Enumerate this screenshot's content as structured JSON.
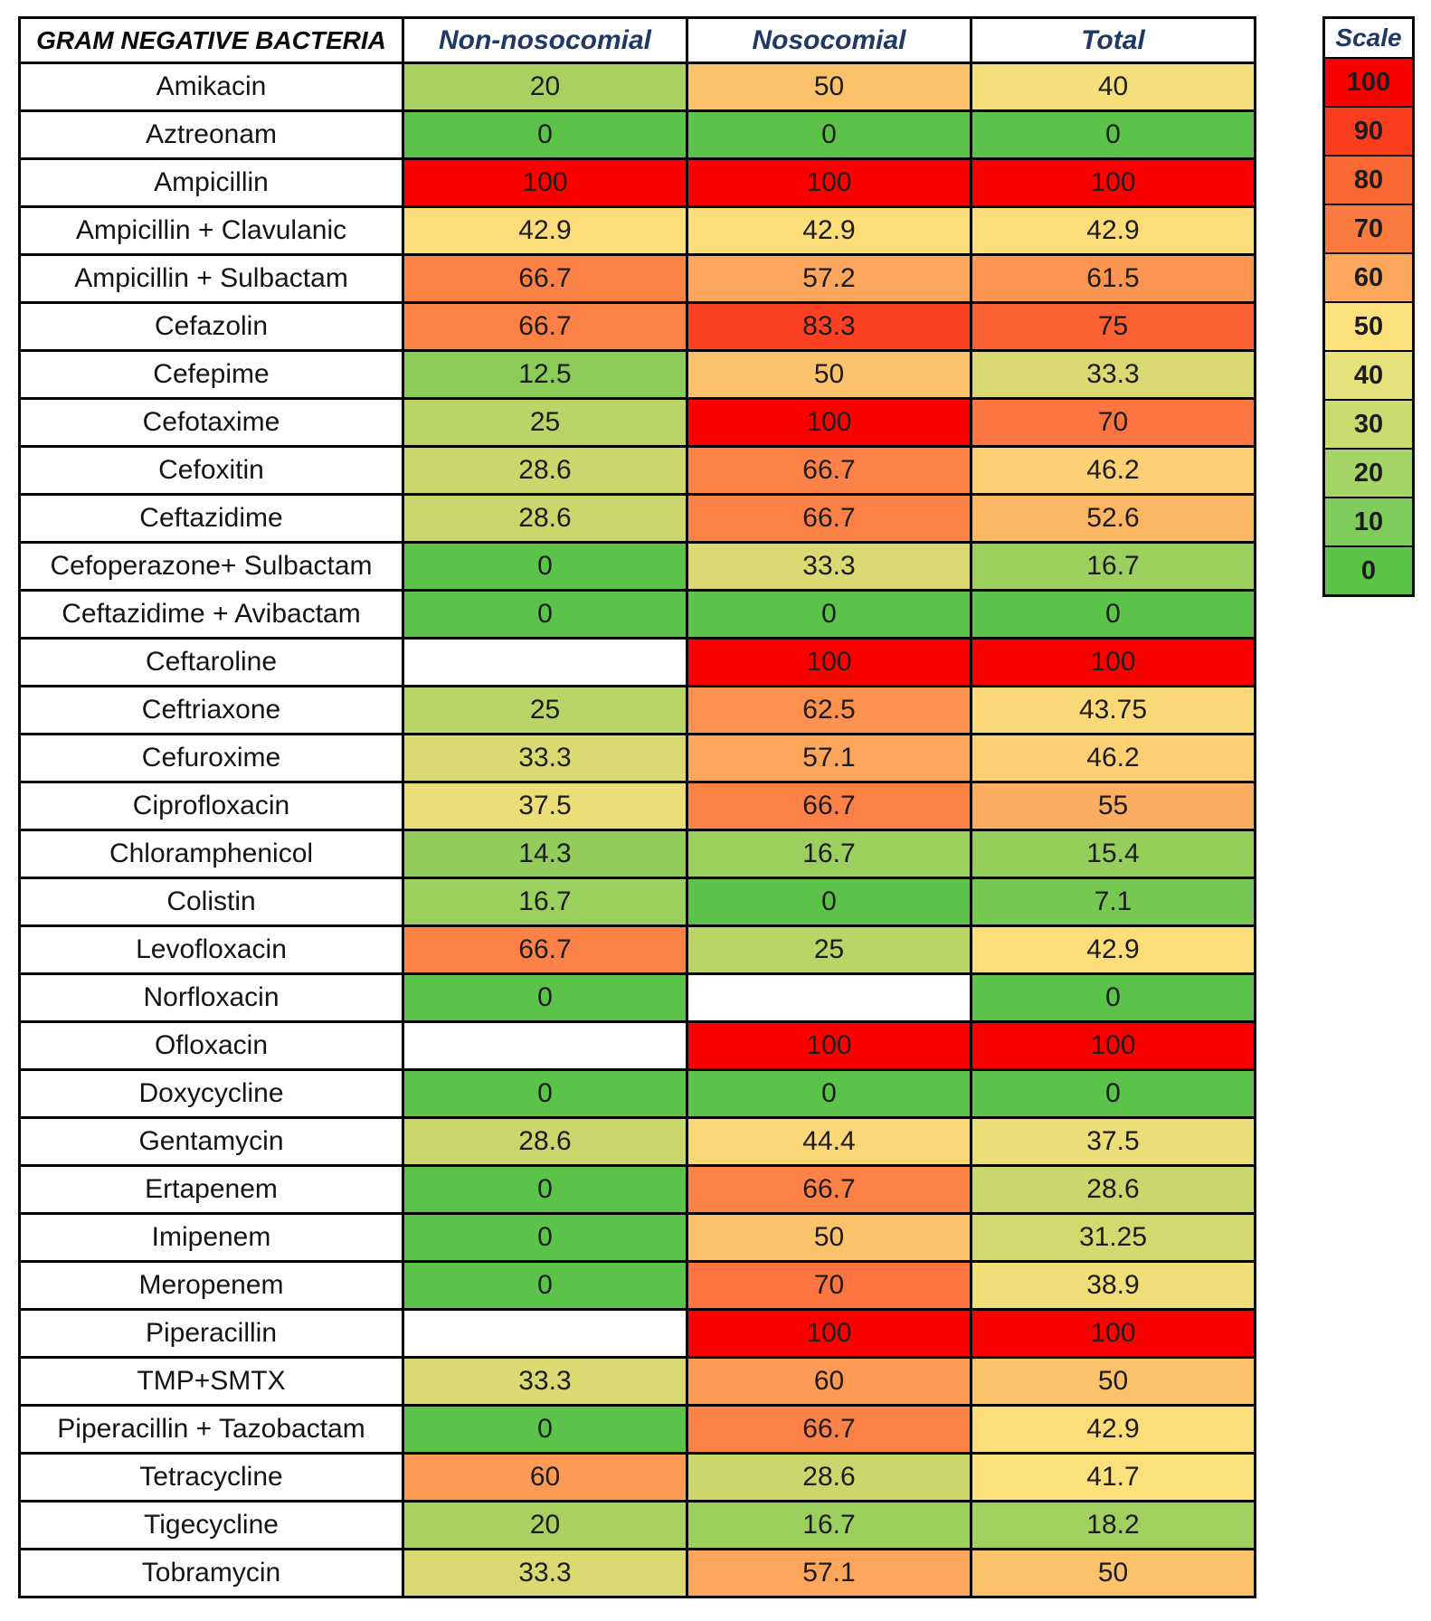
{
  "chart_data": {
    "type": "heatmap",
    "title": "GRAM NEGATIVE BACTERIA",
    "columns": [
      "Non-nosocomial",
      "Nosocomial",
      "Total"
    ],
    "rows": [
      {
        "label": "Amikacin",
        "values": [
          20,
          50,
          40
        ]
      },
      {
        "label": "Aztreonam",
        "values": [
          0,
          0,
          0
        ]
      },
      {
        "label": "Ampicillin",
        "values": [
          100,
          100,
          100
        ]
      },
      {
        "label": "Ampicillin + Clavulanic",
        "values": [
          42.9,
          42.9,
          42.9
        ]
      },
      {
        "label": "Ampicillin + Sulbactam",
        "values": [
          66.7,
          57.2,
          61.5
        ]
      },
      {
        "label": "Cefazolin",
        "values": [
          66.7,
          83.3,
          75
        ]
      },
      {
        "label": "Cefepime",
        "values": [
          12.5,
          50,
          33.3
        ]
      },
      {
        "label": "Cefotaxime",
        "values": [
          25,
          100,
          70
        ]
      },
      {
        "label": "Cefoxitin",
        "values": [
          28.6,
          66.7,
          46.2
        ]
      },
      {
        "label": "Ceftazidime",
        "values": [
          28.6,
          66.7,
          52.6
        ]
      },
      {
        "label": "Cefoperazone+ Sulbactam",
        "values": [
          0,
          33.3,
          16.7
        ]
      },
      {
        "label": "Ceftazidime + Avibactam",
        "values": [
          0,
          0,
          0
        ]
      },
      {
        "label": "Ceftaroline",
        "values": [
          null,
          100,
          100
        ]
      },
      {
        "label": "Ceftriaxone",
        "values": [
          25,
          62.5,
          43.75
        ]
      },
      {
        "label": "Cefuroxime",
        "values": [
          33.3,
          57.1,
          46.2
        ]
      },
      {
        "label": "Ciprofloxacin",
        "values": [
          37.5,
          66.7,
          55
        ]
      },
      {
        "label": "Chloramphenicol",
        "values": [
          14.3,
          16.7,
          15.4
        ]
      },
      {
        "label": "Colistin",
        "values": [
          16.7,
          0,
          7.1
        ]
      },
      {
        "label": "Levofloxacin",
        "values": [
          66.7,
          25,
          42.9
        ]
      },
      {
        "label": "Norfloxacin",
        "values": [
          0,
          null,
          0
        ]
      },
      {
        "label": "Ofloxacin",
        "values": [
          null,
          100,
          100
        ]
      },
      {
        "label": "Doxycycline",
        "values": [
          0,
          0,
          0
        ]
      },
      {
        "label": "Gentamycin",
        "values": [
          28.6,
          44.4,
          37.5
        ]
      },
      {
        "label": "Ertapenem",
        "values": [
          0,
          66.7,
          28.6
        ]
      },
      {
        "label": "Imipenem",
        "values": [
          0,
          50,
          31.25
        ]
      },
      {
        "label": "Meropenem",
        "values": [
          0,
          70,
          38.9
        ]
      },
      {
        "label": "Piperacillin",
        "values": [
          null,
          100,
          100
        ]
      },
      {
        "label": "TMP+SMTX",
        "values": [
          33.3,
          60,
          50
        ]
      },
      {
        "label": "Piperacillin + Tazobactam",
        "values": [
          0,
          66.7,
          42.9
        ]
      },
      {
        "label": "Tetracycline",
        "values": [
          60,
          28.6,
          41.7
        ]
      },
      {
        "label": "Tigecycline",
        "values": [
          20,
          16.7,
          18.2
        ]
      },
      {
        "label": "Tobramycin",
        "values": [
          33.3,
          57.1,
          50
        ]
      }
    ],
    "scale": {
      "title": "Scale",
      "entries": [
        {
          "value": 100,
          "color": "#FB0000"
        },
        {
          "value": 90,
          "color": "#FA3D1E"
        },
        {
          "value": 80,
          "color": "#F96732"
        },
        {
          "value": 70,
          "color": "#FA7B3D"
        },
        {
          "value": 60,
          "color": "#FBA85D"
        },
        {
          "value": 50,
          "color": "#FBE07B"
        },
        {
          "value": 40,
          "color": "#E6E27B"
        },
        {
          "value": 30,
          "color": "#C9DC70"
        },
        {
          "value": 20,
          "color": "#A5D468"
        },
        {
          "value": 10,
          "color": "#7FCB5C"
        },
        {
          "value": 0,
          "color": "#5BC348"
        }
      ]
    },
    "colormap": {
      "low": "#5BC34A",
      "mid": "#FCE07C",
      "high": "#FC0000",
      "midpoint": 42,
      "empty_cell": "#FFFFFF"
    },
    "layout": {
      "legend_position": "top-right",
      "grid": true,
      "value_range": [
        0,
        100
      ]
    },
    "style_colors": {
      "border": "#000000",
      "header_text": "#1F3864",
      "title_text": "#0B0B0B",
      "value_text": "#1C1C1C"
    }
  }
}
